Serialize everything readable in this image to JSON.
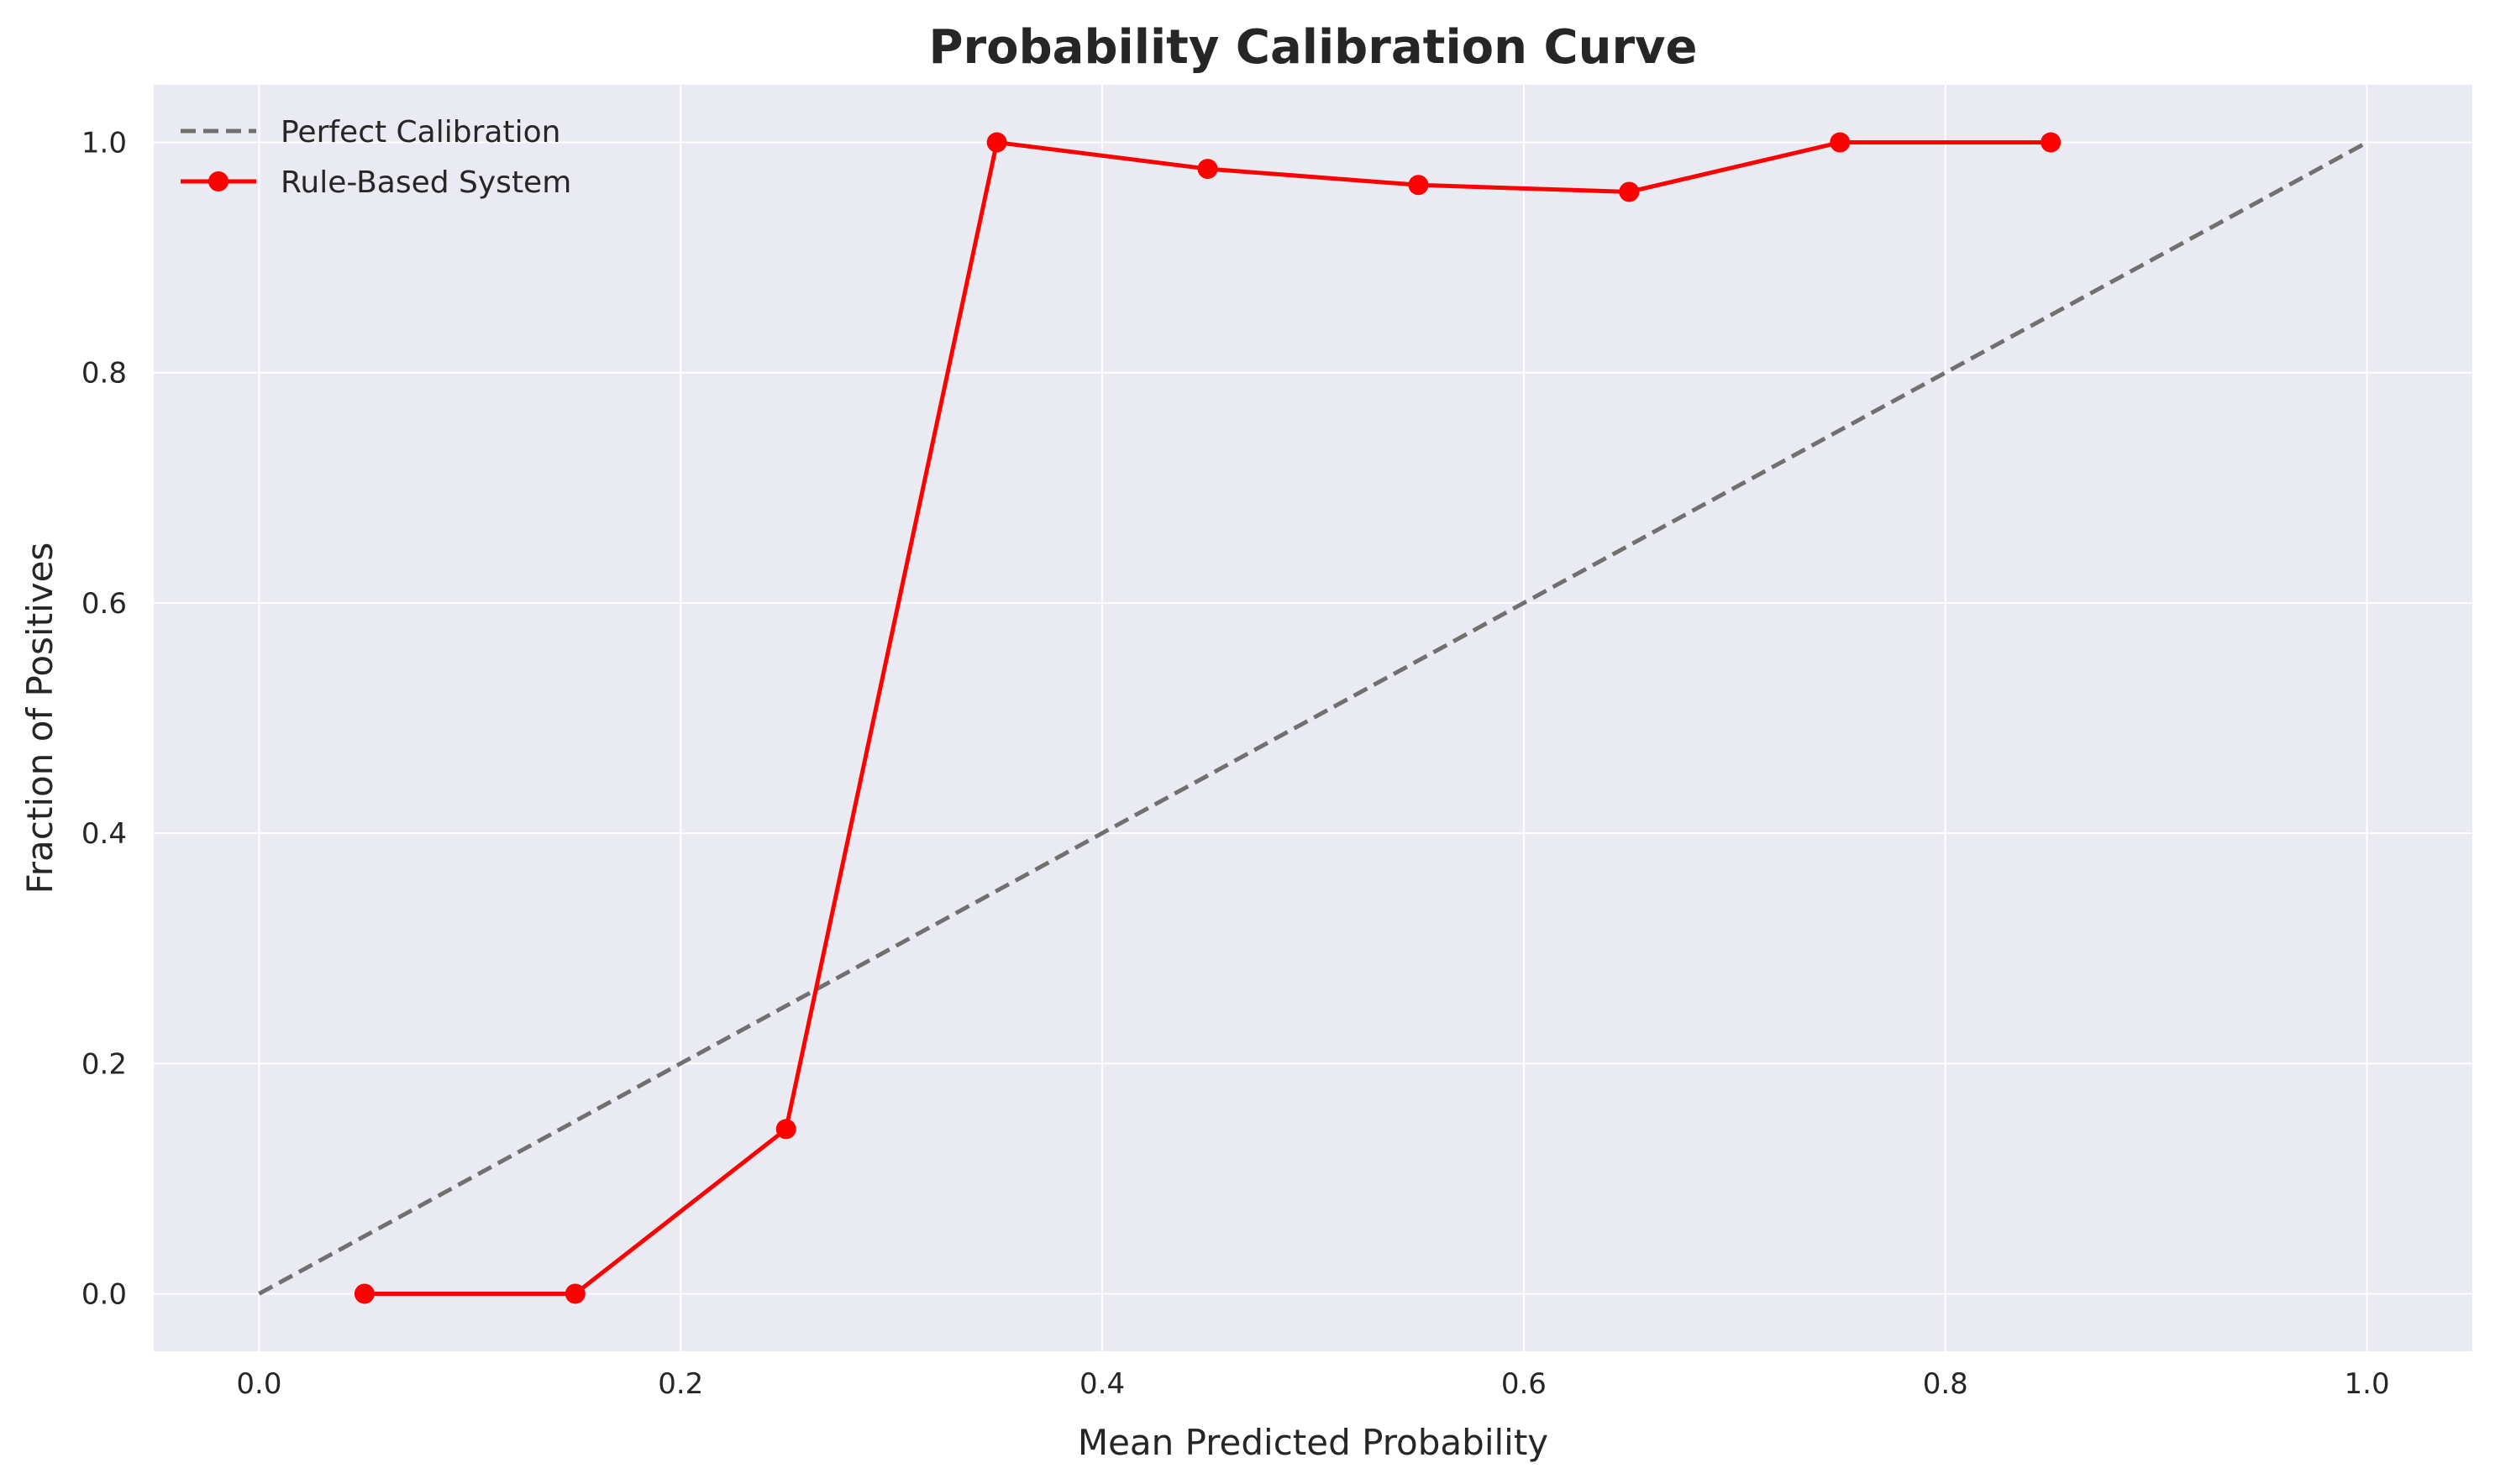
{
  "chart_data": {
    "type": "line",
    "title": "Probability Calibration Curve",
    "xlabel": "Mean Predicted Probability",
    "ylabel": "Fraction of Positives",
    "xlim": [
      -0.05,
      1.05
    ],
    "ylim": [
      -0.05,
      1.05
    ],
    "xticks": [
      0.0,
      0.2,
      0.4,
      0.6,
      0.8,
      1.0
    ],
    "yticks": [
      0.0,
      0.2,
      0.4,
      0.6,
      0.8,
      1.0
    ],
    "xtick_labels": [
      "0.0",
      "0.2",
      "0.4",
      "0.6",
      "0.8",
      "1.0"
    ],
    "ytick_labels": [
      "0.0",
      "0.2",
      "0.4",
      "0.6",
      "0.8",
      "1.0"
    ],
    "grid": true,
    "legend_position": "top-left",
    "series": [
      {
        "name": "Perfect Calibration",
        "style": "dashed",
        "color": "#707070",
        "x": [
          0.0,
          1.0
        ],
        "y": [
          0.0,
          1.0
        ]
      },
      {
        "name": "Rule-Based System",
        "style": "solid-markers",
        "color": "#ff0000",
        "x": [
          0.05,
          0.15,
          0.25,
          0.35,
          0.45,
          0.55,
          0.65,
          0.75,
          0.85
        ],
        "y": [
          0.0,
          0.0,
          0.143,
          1.0,
          0.977,
          0.963,
          0.957,
          1.0,
          1.0
        ]
      }
    ]
  }
}
